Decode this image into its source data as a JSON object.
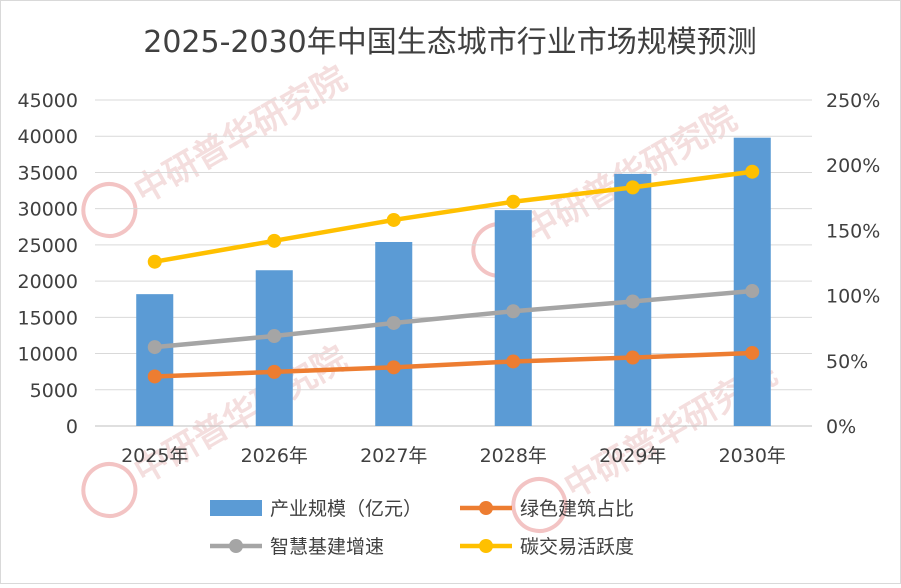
{
  "chart_data": {
    "type": "bar",
    "title": "2025-2030年中国生态城市行业市场规模预测",
    "categories": [
      "2025年",
      "2026年",
      "2027年",
      "2028年",
      "2029年",
      "2030年"
    ],
    "series": [
      {
        "name": "产业规模（亿元）",
        "type": "bar",
        "axis": "left",
        "color": "#5b9bd5",
        "values": [
          18200,
          21500,
          25400,
          29800,
          34800,
          39800
        ]
      },
      {
        "name": "绿色建筑占比",
        "type": "line",
        "axis": "right",
        "color": "#ed7d31",
        "values": [
          0.38,
          0.415,
          0.45,
          0.495,
          0.525,
          0.56
        ]
      },
      {
        "name": "智慧基建增速",
        "type": "line",
        "axis": "right",
        "color": "#a5a5a5",
        "values": [
          0.605,
          0.69,
          0.79,
          0.88,
          0.955,
          1.035
        ]
      },
      {
        "name": "碳交易活跃度",
        "type": "line",
        "axis": "right",
        "color": "#ffc000",
        "values": [
          1.26,
          1.42,
          1.58,
          1.72,
          1.83,
          1.95
        ]
      }
    ],
    "y_left": {
      "min": 0,
      "max": 45000,
      "step": 5000,
      "ticks": [
        "0",
        "5000",
        "10000",
        "15000",
        "20000",
        "25000",
        "30000",
        "35000",
        "40000",
        "45000"
      ]
    },
    "y_right": {
      "min": 0,
      "max": 2.5,
      "step": 0.5,
      "ticks": [
        "0%",
        "50%",
        "100%",
        "150%",
        "200%",
        "250%"
      ]
    },
    "grid": true,
    "legend_position": "bottom",
    "legend": [
      {
        "label": "产业规模（亿元）",
        "kind": "bar",
        "color": "#5b9bd5"
      },
      {
        "label": "绿色建筑占比",
        "kind": "line",
        "color": "#ed7d31"
      },
      {
        "label": "智慧基建增速",
        "kind": "line",
        "color": "#a5a5a5"
      },
      {
        "label": "碳交易活跃度",
        "kind": "line",
        "color": "#ffc000"
      }
    ],
    "watermark": "中研普华研究院"
  }
}
